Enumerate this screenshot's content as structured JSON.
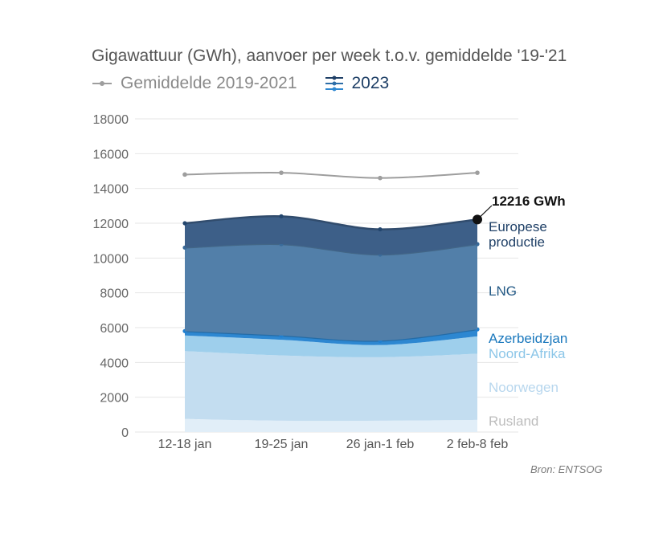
{
  "title": "Gigawattuur (GWh), aanvoer per week t.o.v. gemiddelde '19-'21",
  "legend": {
    "average_label": "Gemiddelde 2019-2021",
    "current_label": "2023"
  },
  "source": "Bron: ENTSOG",
  "colors": {
    "average": "#9e9e9e",
    "rusland": "#e1eef8",
    "noorwegen": "#c3ddf0",
    "noord_afrika": "#9ecfec",
    "azerbeidzjan": "#2d87d1",
    "lng": "#527fa9",
    "europese_productie": "#3d5f88"
  },
  "chart_data": {
    "type": "area",
    "stacked": true,
    "categories": [
      "12-18 jan",
      "19-25 jan",
      "26 jan-1 feb",
      "2 feb-8 feb"
    ],
    "ylim": [
      0,
      18000
    ],
    "yticks": [
      0,
      2000,
      4000,
      6000,
      8000,
      10000,
      12000,
      14000,
      16000,
      18000
    ],
    "grid": true,
    "series": [
      {
        "name": "Rusland",
        "values": [
          750,
          650,
          650,
          700
        ],
        "color": "#e1eef8",
        "label_color": "#bdbdbd"
      },
      {
        "name": "Noorwegen",
        "values": [
          3900,
          3750,
          3650,
          3800
        ],
        "color": "#c3ddf0",
        "label_color": "#b8d7ee"
      },
      {
        "name": "Noord-Afrika",
        "values": [
          900,
          900,
          700,
          1000
        ],
        "color": "#9ecfec",
        "label_color": "#8cc6e8"
      },
      {
        "name": "Azerbeidzjan",
        "values": [
          250,
          250,
          250,
          400
        ],
        "color": "#2d87d1",
        "label_color": "#1a78bd"
      },
      {
        "name": "LNG",
        "values": [
          4800,
          5250,
          4950,
          4900
        ],
        "color": "#527fa9",
        "label_color": "#245a86"
      },
      {
        "name": "Europese productie",
        "label_lines": [
          "Europese",
          "productie"
        ],
        "values": [
          1400,
          1600,
          1450,
          1416
        ],
        "color": "#3d5f88",
        "label_color": "#1e3f66"
      }
    ],
    "average": {
      "name": "Gemiddelde 2019-2021",
      "values": [
        14800,
        14900,
        14600,
        14900
      ]
    },
    "annotation": {
      "text": "12216 GWh",
      "category": "2 feb-8 feb",
      "value": 12216
    }
  }
}
